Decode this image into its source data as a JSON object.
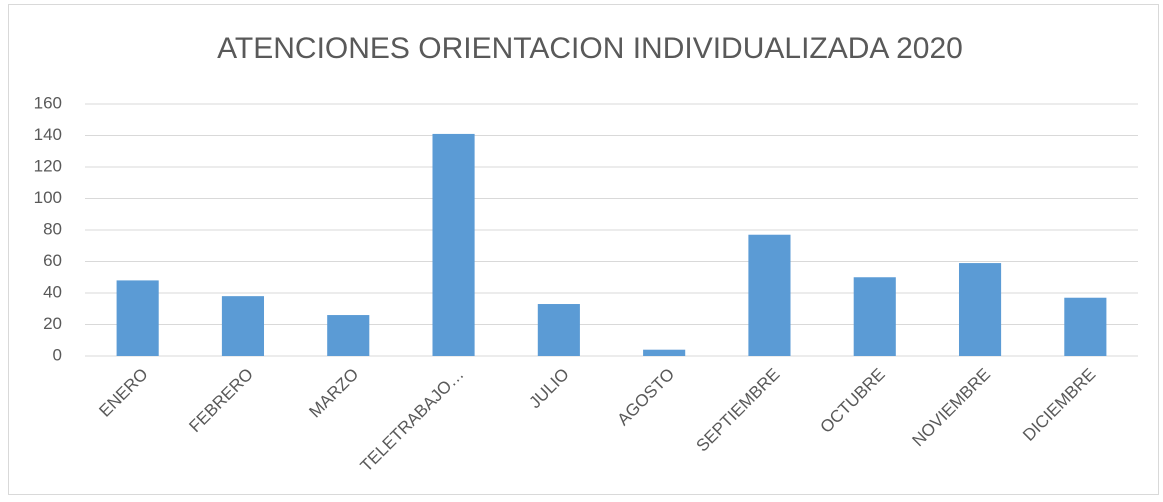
{
  "chart_data": {
    "type": "bar",
    "title": "ATENCIONES ORIENTACION INDIVIDUALIZADA 2020",
    "categories": [
      "ENERO",
      "FEBRERO",
      "MARZO",
      "TELETRABAJO…",
      "JULIO",
      "AGOSTO",
      "SEPTIEMBRE",
      "OCTUBRE",
      "NOVIEMBRE",
      "DICIEMBRE"
    ],
    "values": [
      48,
      38,
      26,
      141,
      33,
      4,
      77,
      50,
      59,
      37
    ],
    "color": "#5b9bd5",
    "ylim": [
      0,
      160
    ],
    "yticks": [
      0,
      20,
      40,
      60,
      80,
      100,
      120,
      140,
      160
    ],
    "grid": true
  }
}
